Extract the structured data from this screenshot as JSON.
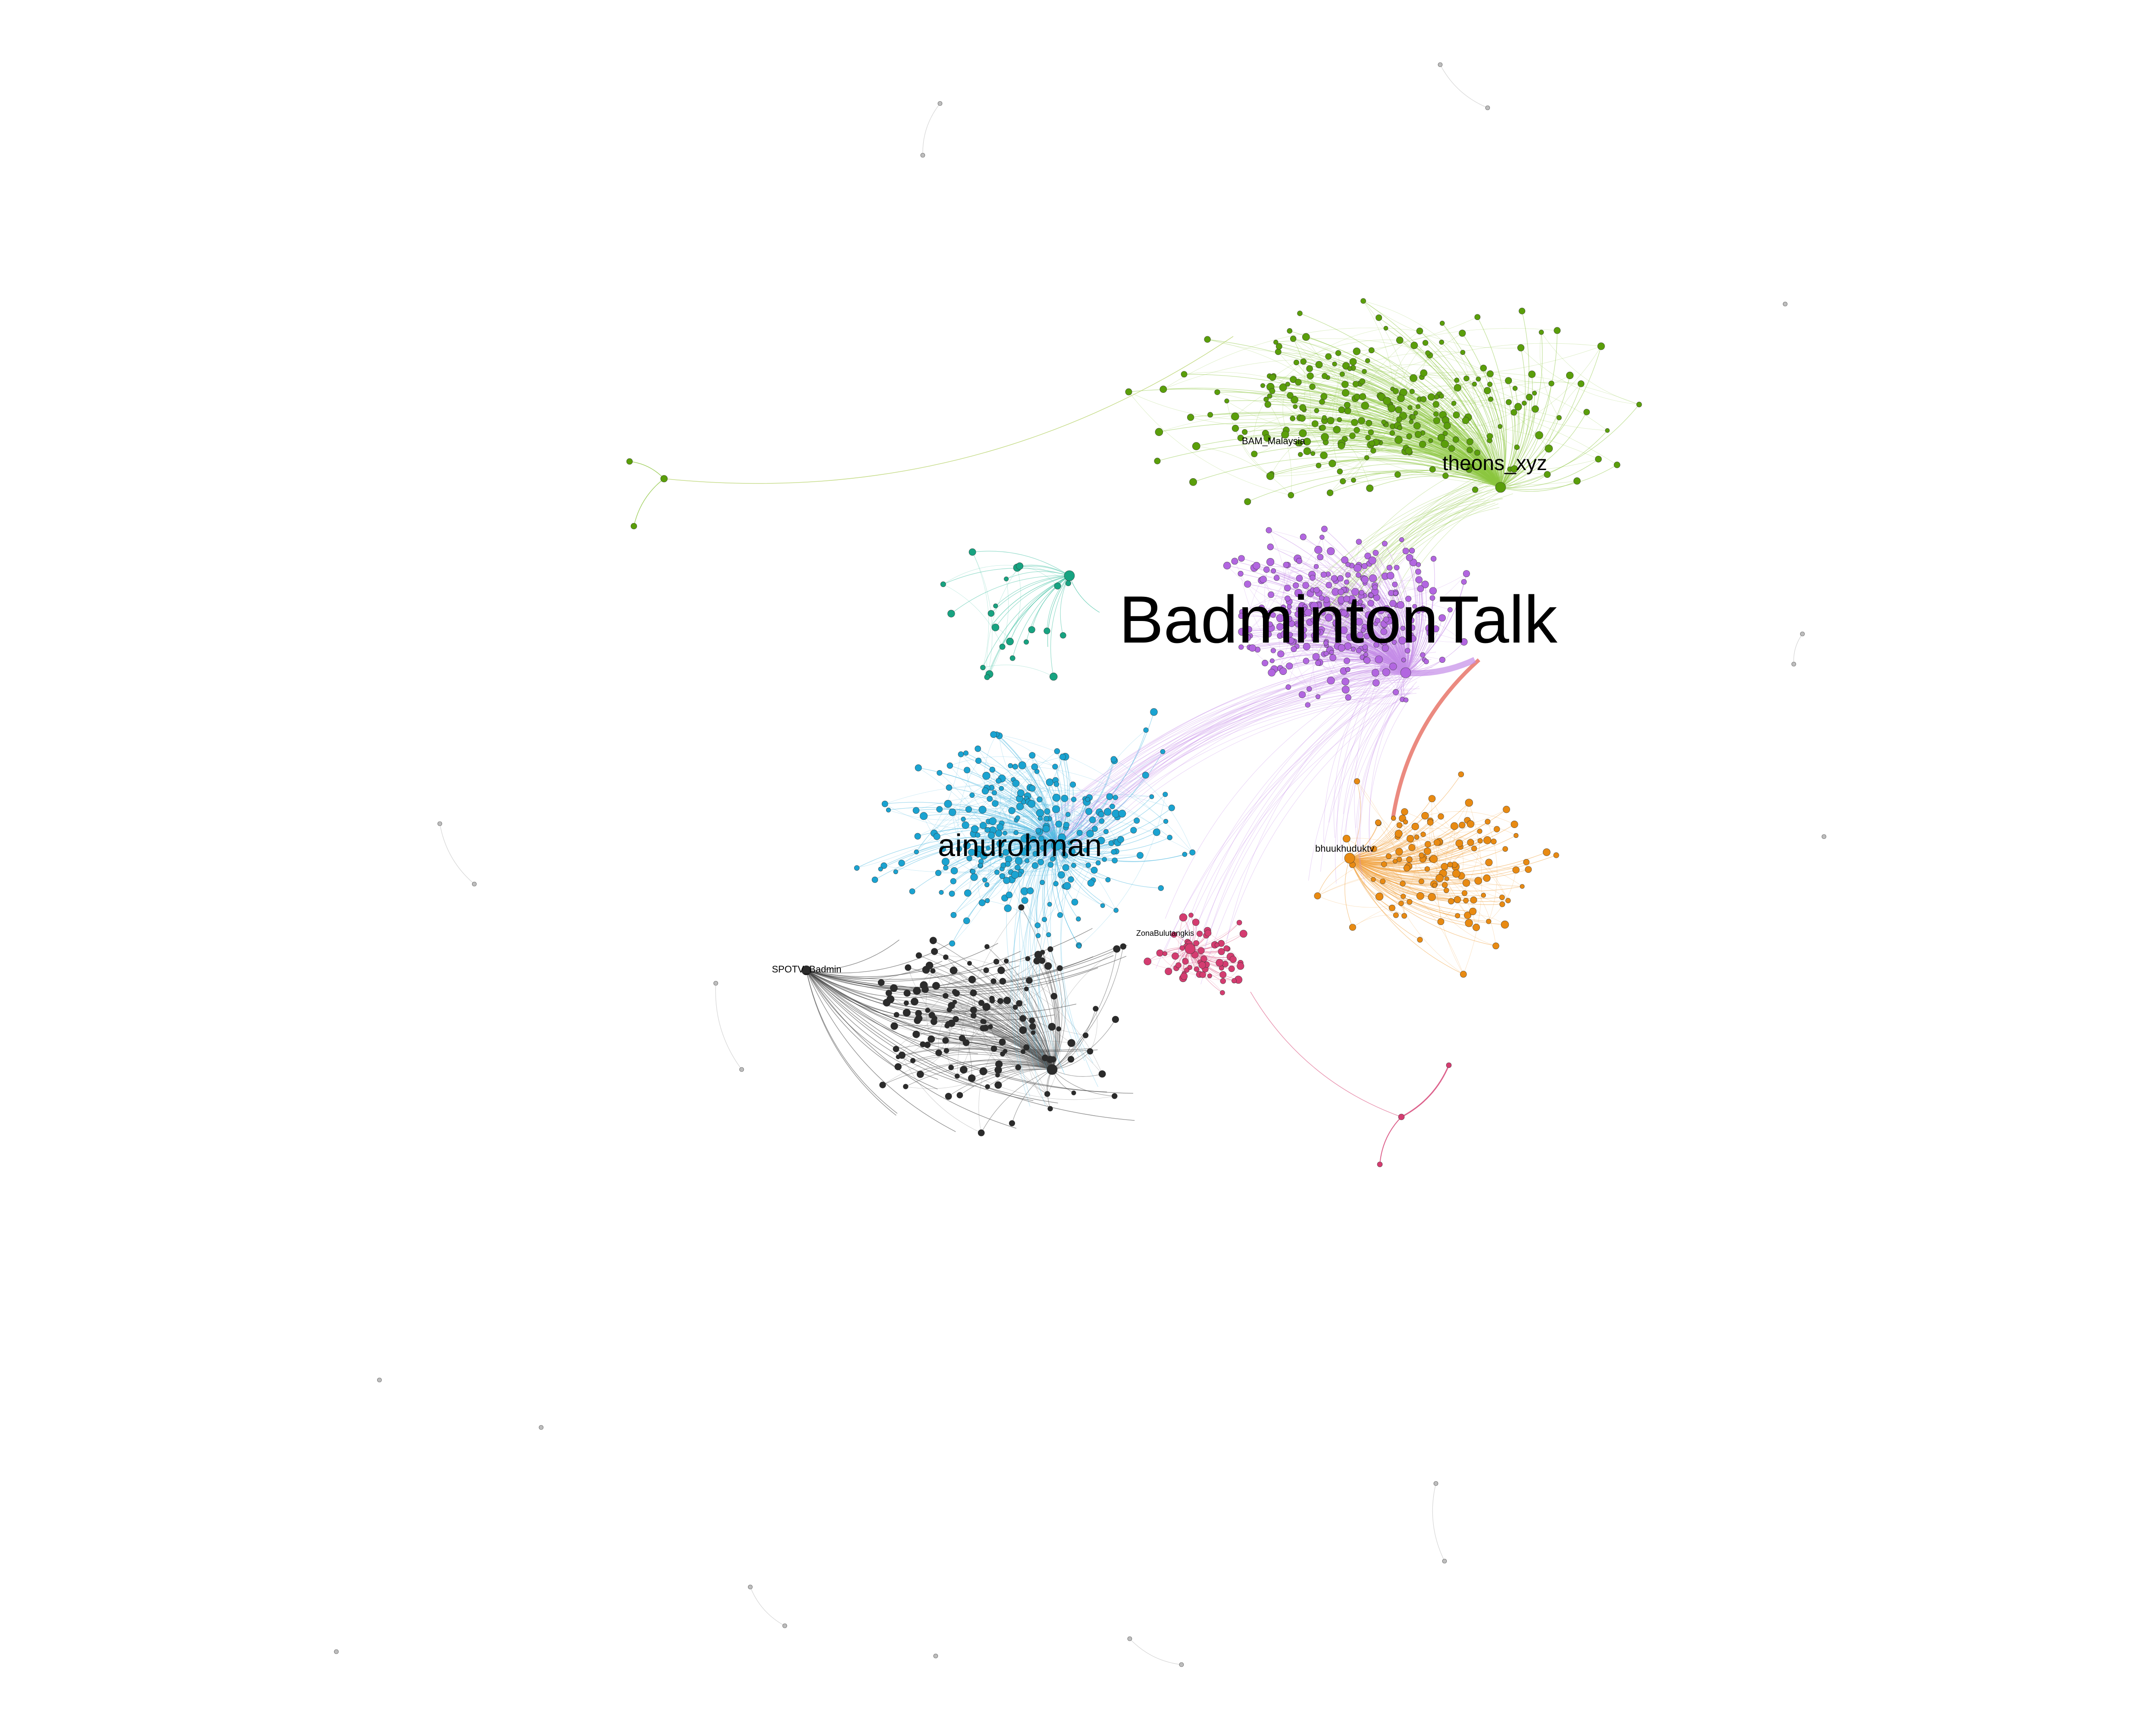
{
  "diagram": {
    "type": "network-graph",
    "background": "#ffffff",
    "communities": [
      {
        "id": "green",
        "color": "#5a9e0a",
        "edge_color": "#8dc63f"
      },
      {
        "id": "purple",
        "color": "#b266e0",
        "edge_color": "#c58de8"
      },
      {
        "id": "blue",
        "color": "#1aa3d1",
        "edge_color": "#4db8e0"
      },
      {
        "id": "orange",
        "color": "#e88a12",
        "edge_color": "#f0a03c"
      },
      {
        "id": "pink",
        "color": "#d43c70",
        "edge_color": "#e06b92"
      },
      {
        "id": "black",
        "color": "#2b2b2b",
        "edge_color": "#555555"
      },
      {
        "id": "teal",
        "color": "#17a381",
        "edge_color": "#3cc0a0"
      },
      {
        "id": "gray",
        "color": "#9e9e9e",
        "edge_color": "#c8c8c8"
      }
    ],
    "hub_labels": [
      {
        "id": "badmintontalk",
        "text": "BadmintonTalk",
        "community": "purple"
      },
      {
        "id": "ainurohman",
        "text": "ainurohman",
        "community": "blue"
      },
      {
        "id": "theons-xyz",
        "text": "theons_xyz",
        "community": "green"
      },
      {
        "id": "bhuukhuduktv",
        "text": "bhuukhuduktv",
        "community": "orange"
      },
      {
        "id": "spotv",
        "text": "SPOTV_Badmin",
        "community": "black"
      },
      {
        "id": "zonabulutangkis",
        "text": "ZonaBulutangkis",
        "community": "pink"
      },
      {
        "id": "bam-malaysia",
        "text": "BAM_Malaysia",
        "community": "green"
      }
    ]
  }
}
